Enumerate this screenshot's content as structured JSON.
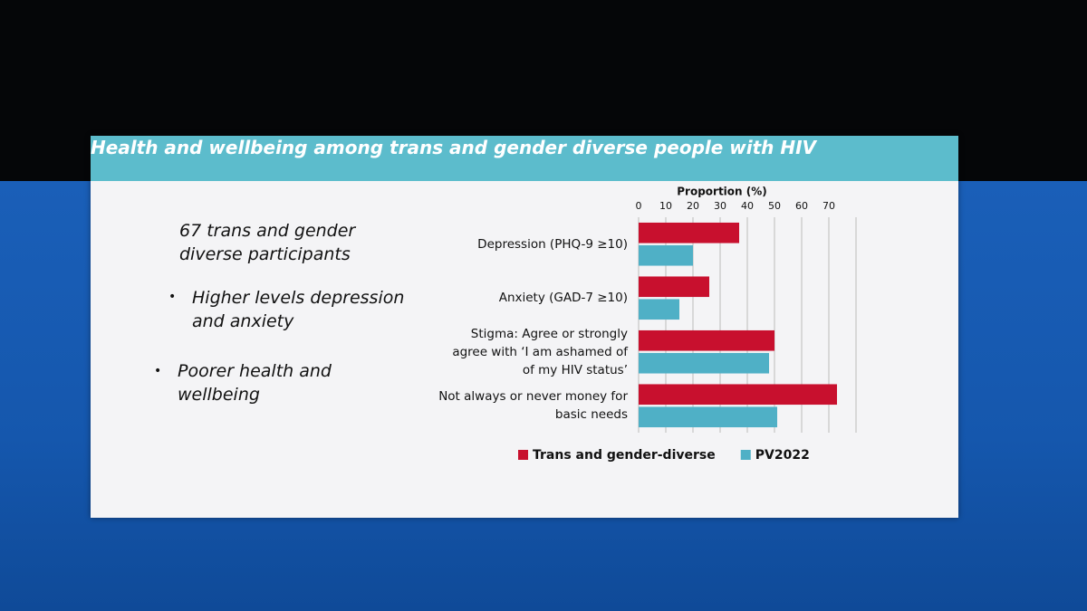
{
  "slide": {
    "title": "Health and wellbeing among trans and gender diverse people with HIV",
    "points": [
      "67 trans and gender diverse participants",
      "Higher levels depression and anxiety",
      "Poorer health and wellbeing"
    ]
  },
  "chart_data": {
    "type": "hbar",
    "x_label": "Proportion (%)",
    "categories": [
      "Depression (PHQ-9 ≥10)",
      "Anxiety (GAD-7 ≥10)",
      "Stigma:  Agree or strongly agree with ‘I am ashamed of of my HIV status’",
      "Not always or never money for basic needs"
    ],
    "series": [
      {
        "name": "Trans and gender-diverse",
        "color": "#c8102e",
        "values": [
          37,
          26,
          50,
          73
        ]
      },
      {
        "name": "PV2022",
        "color": "#4fb0c6",
        "values": [
          20,
          15,
          48,
          51
        ]
      }
    ],
    "xlim": [
      0,
      80
    ],
    "xticks": [
      0,
      10,
      20,
      30,
      40,
      50,
      60,
      70
    ],
    "grid": true,
    "legend": "bottom"
  }
}
